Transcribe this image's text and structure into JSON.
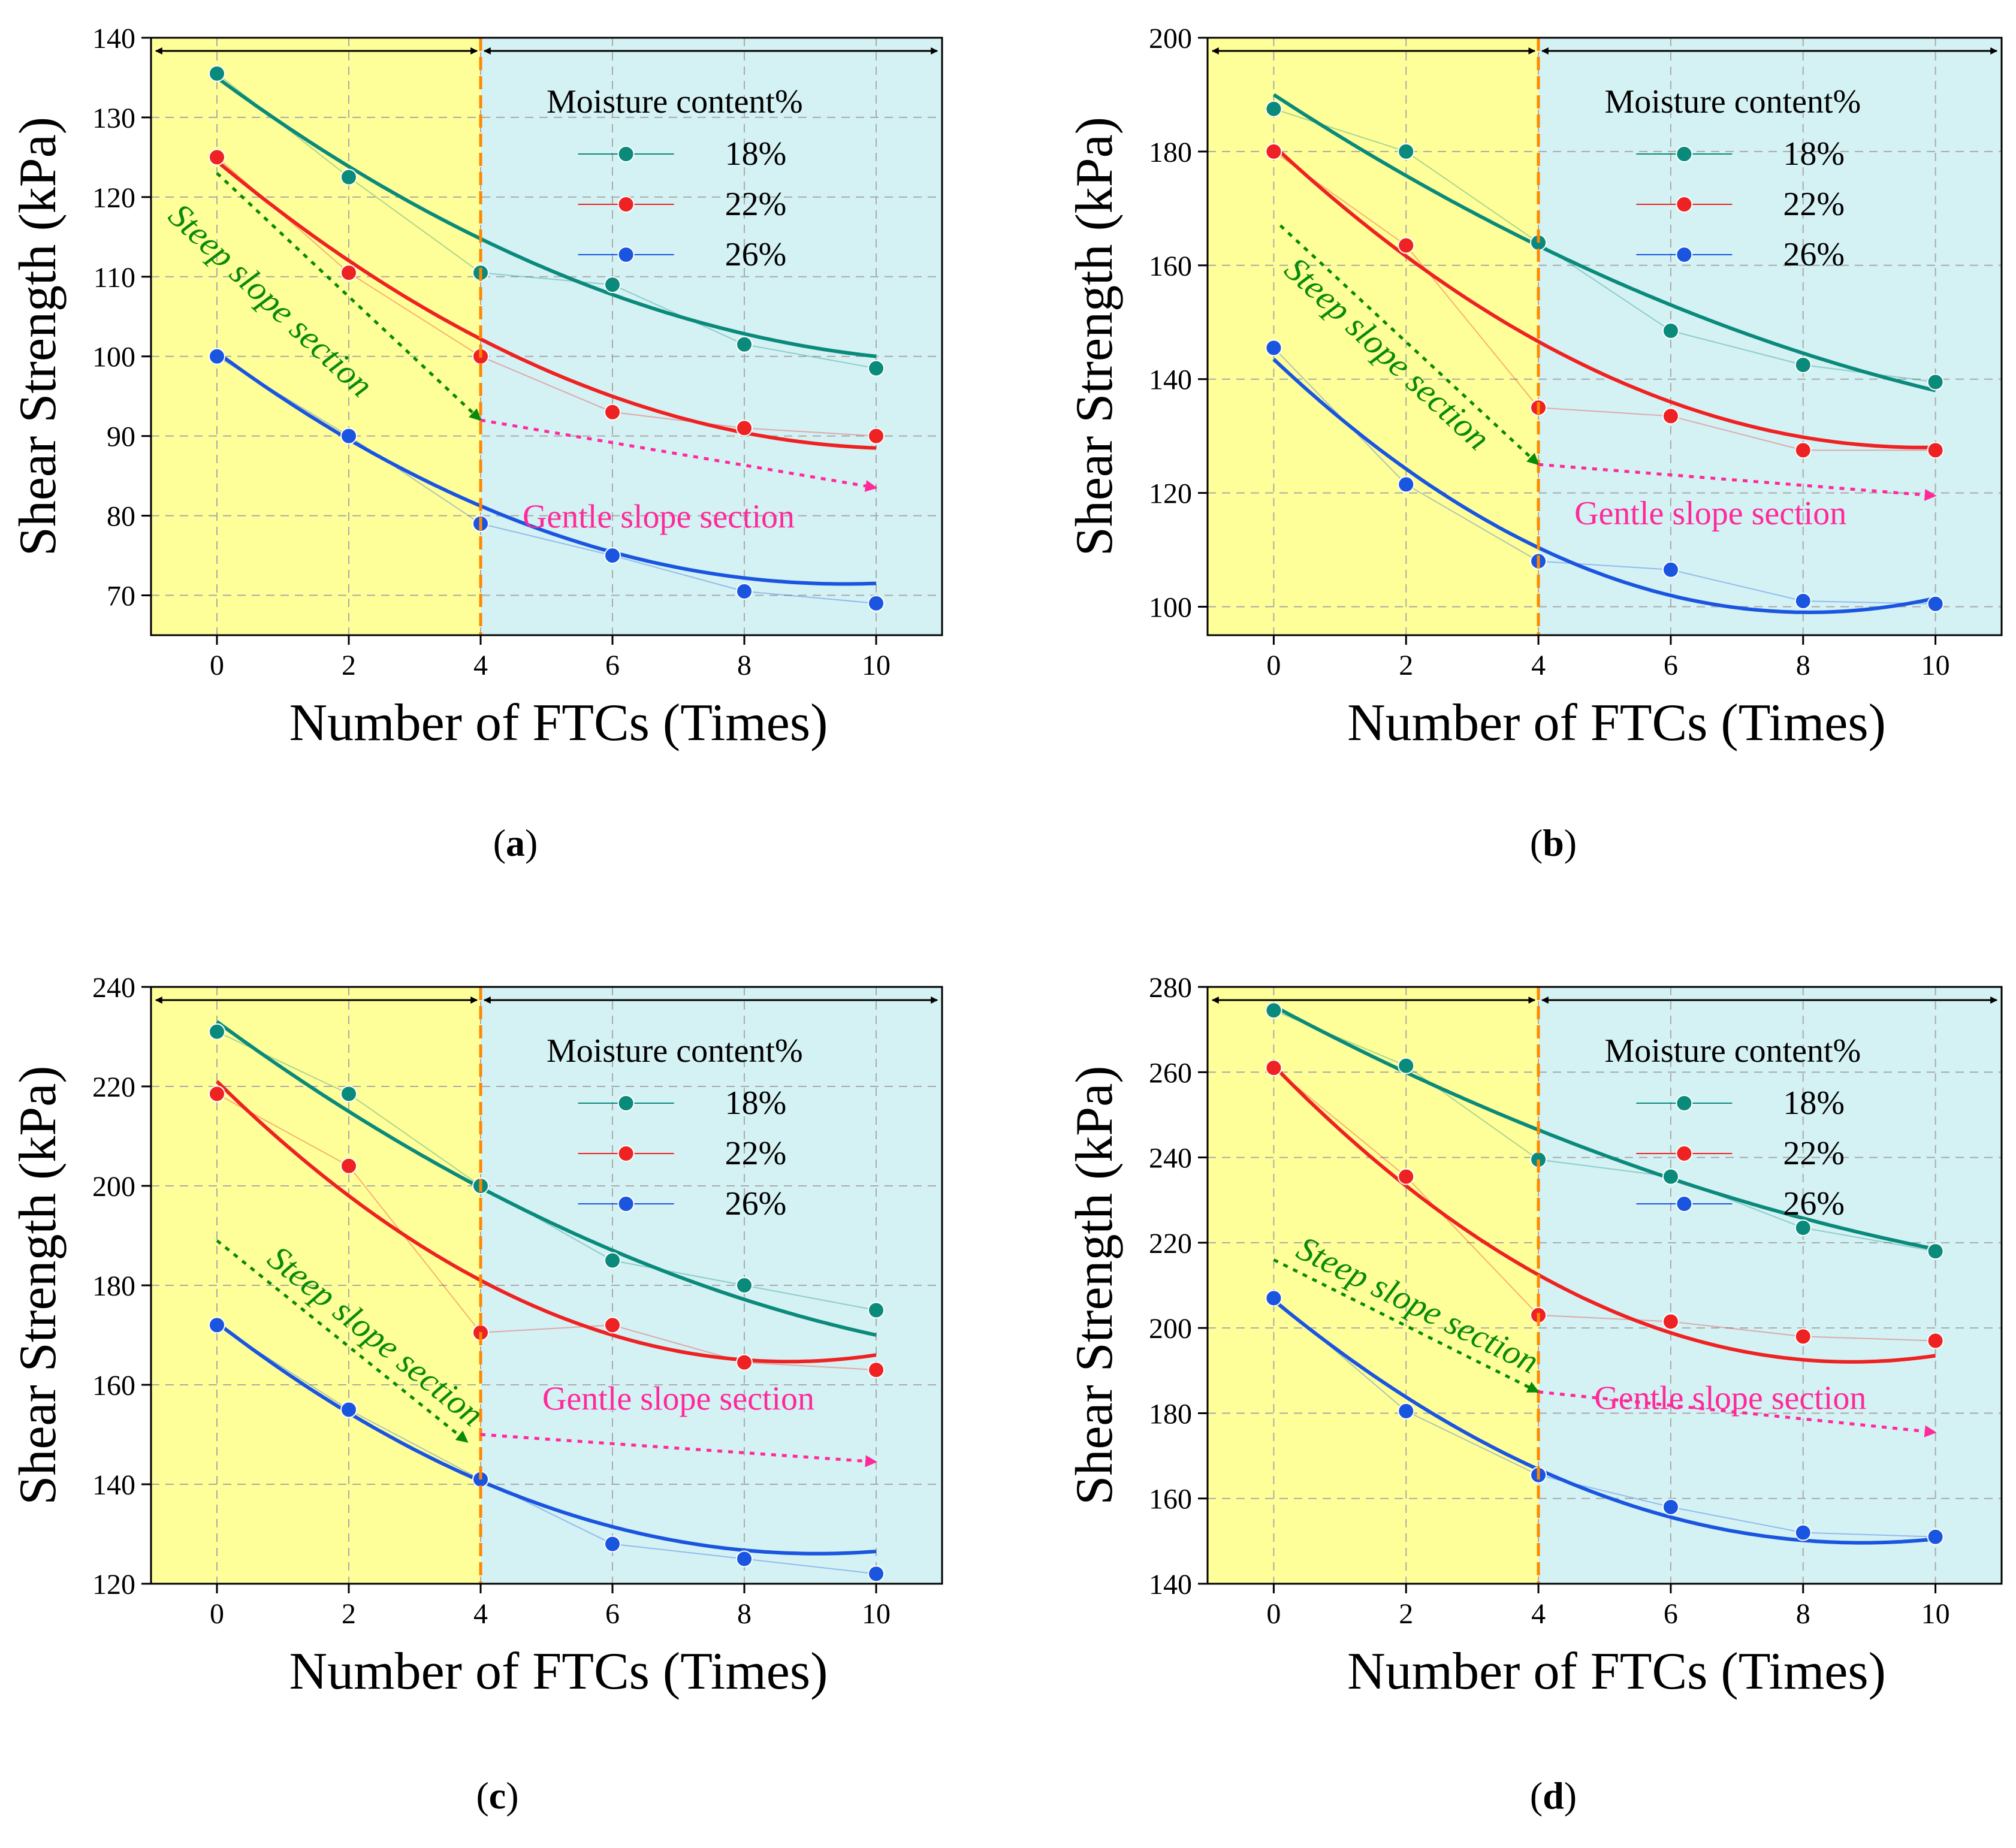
{
  "chart_data": [
    {
      "type": "line",
      "caption_letter": "a",
      "xlabel": "Number of FTCs (Times)",
      "ylabel": "Shear Strength (kPa)",
      "xlim": [
        -1,
        11
      ],
      "ylim": [
        65,
        140
      ],
      "xticks": [
        0,
        2,
        4,
        6,
        8,
        10
      ],
      "yticks": [
        70,
        80,
        90,
        100,
        110,
        120,
        130,
        140
      ],
      "grid": true,
      "divider_x": 4,
      "regions": [
        {
          "from": -1,
          "to": 4,
          "color": "#ffff99"
        },
        {
          "from": 4,
          "to": 11,
          "color": "#d4f1f4"
        }
      ],
      "legend_title": "Moisture content%",
      "legend_position": "top-right",
      "x": [
        0,
        2,
        4,
        6,
        8,
        10
      ],
      "series": [
        {
          "name": "18%",
          "color": "#0a8a7a",
          "values": [
            135.5,
            122.5,
            110.5,
            109,
            101.5,
            98.5
          ],
          "fit": [
            135,
            -6.1,
            0.26
          ]
        },
        {
          "name": "22%",
          "color": "#ee2222",
          "values": [
            125,
            110.5,
            100,
            93,
            91,
            90
          ],
          "fit": [
            124.5,
            -6.9,
            0.33
          ]
        },
        {
          "name": "26%",
          "color": "#1a55e0",
          "values": [
            100,
            90,
            79,
            75,
            70.5,
            69
          ],
          "fit": [
            100.5,
            -6.1,
            0.32
          ]
        }
      ],
      "annotations": {
        "steep_text": "Steep slope section",
        "gentle_text": "Gentle slope section",
        "steep_arrow": {
          "from": [
            0,
            123
          ],
          "to": [
            4,
            92
          ]
        },
        "gentle_arrow": {
          "from": [
            4,
            92
          ],
          "to": [
            10,
            83.5
          ]
        },
        "steep_label_at": [
          0.7,
          106
        ],
        "gentle_label_at": [
          6.7,
          78.5
        ]
      }
    },
    {
      "type": "line",
      "caption_letter": "b",
      "xlabel": "Number of FTCs (Times)",
      "ylabel": "Shear Strength (kPa)",
      "xlim": [
        -1,
        11
      ],
      "ylim": [
        95,
        200
      ],
      "xticks": [
        0,
        2,
        4,
        6,
        8,
        10
      ],
      "yticks": [
        100,
        120,
        140,
        160,
        180,
        200
      ],
      "grid": true,
      "divider_x": 4,
      "regions": [
        {
          "from": -1,
          "to": 4,
          "color": "#ffff99"
        },
        {
          "from": 4,
          "to": 11,
          "color": "#d4f1f4"
        }
      ],
      "legend_title": "Moisture content%",
      "legend_position": "top-right",
      "x": [
        0,
        2,
        4,
        6,
        8,
        10
      ],
      "series": [
        {
          "name": "18%",
          "color": "#0a8a7a",
          "values": [
            187.5,
            180,
            164,
            148.5,
            142.5,
            139.5
          ],
          "fit": [
            190,
            -7.6,
            0.24
          ]
        },
        {
          "name": "22%",
          "color": "#ee2222",
          "values": [
            180,
            163.5,
            135,
            133.5,
            127.5,
            127.5
          ],
          "fit": [
            181,
            -10.8,
            0.55
          ]
        },
        {
          "name": "26%",
          "color": "#1a55e0",
          "values": [
            145.5,
            121.5,
            108,
            106.5,
            101,
            100.5
          ],
          "fit": [
            143.5,
            -11.0,
            0.68
          ]
        }
      ],
      "annotations": {
        "steep_text": "Steep slope section",
        "gentle_text": "Gentle slope section",
        "steep_arrow": {
          "from": [
            0.1,
            167
          ],
          "to": [
            4,
            125
          ]
        },
        "gentle_arrow": {
          "from": [
            4,
            125
          ],
          "to": [
            10,
            119.5
          ]
        },
        "steep_label_at": [
          1.6,
          143
        ],
        "gentle_label_at": [
          6.6,
          114.5
        ]
      }
    },
    {
      "type": "line",
      "caption_letter": "c",
      "xlabel": "Number of FTCs (Times)",
      "ylabel": "Shear Strength (kPa)",
      "xlim": [
        -1,
        11
      ],
      "ylim": [
        120,
        240
      ],
      "xticks": [
        0,
        2,
        4,
        6,
        8,
        10
      ],
      "yticks": [
        120,
        140,
        160,
        180,
        200,
        220,
        240
      ],
      "grid": true,
      "divider_x": 4,
      "regions": [
        {
          "from": -1,
          "to": 4,
          "color": "#ffff99"
        },
        {
          "from": 4,
          "to": 11,
          "color": "#d4f1f4"
        }
      ],
      "legend_title": "Moisture content%",
      "legend_position": "top-right",
      "x": [
        0,
        2,
        4,
        6,
        8,
        10
      ],
      "series": [
        {
          "name": "18%",
          "color": "#0a8a7a",
          "values": [
            231,
            218.5,
            200,
            185,
            180,
            175
          ],
          "fit": [
            233,
            -9.7,
            0.34
          ]
        },
        {
          "name": "22%",
          "color": "#ee2222",
          "values": [
            218.5,
            204,
            170.5,
            172,
            164.5,
            163
          ],
          "fit": [
            221,
            -13.0,
            0.75
          ]
        },
        {
          "name": "26%",
          "color": "#1a55e0",
          "values": [
            172,
            155,
            141,
            128,
            125,
            122
          ],
          "fit": [
            172.5,
            -10.2,
            0.56
          ]
        }
      ],
      "annotations": {
        "steep_text": "Steep slope section",
        "gentle_text": "Gentle slope section",
        "steep_arrow": {
          "from": [
            0,
            189
          ],
          "to": [
            3.8,
            148.5
          ]
        },
        "gentle_arrow": {
          "from": [
            4,
            150
          ],
          "to": [
            10,
            144.5
          ]
        },
        "steep_label_at": [
          2.3,
          168
        ],
        "gentle_label_at": [
          7.0,
          155
        ]
      }
    },
    {
      "type": "line",
      "caption_letter": "d",
      "xlabel": "Number of FTCs (Times)",
      "ylabel": "Shear Strength (kPa)",
      "xlim": [
        -1,
        11
      ],
      "ylim": [
        140,
        280
      ],
      "xticks": [
        0,
        2,
        4,
        6,
        8,
        10
      ],
      "yticks": [
        140,
        160,
        180,
        200,
        220,
        240,
        260,
        280
      ],
      "grid": true,
      "divider_x": 4,
      "regions": [
        {
          "from": -1,
          "to": 4,
          "color": "#ffff99"
        },
        {
          "from": 4,
          "to": 11,
          "color": "#d4f1f4"
        }
      ],
      "legend_title": "Moisture content%",
      "legend_position": "top-right",
      "x": [
        0,
        2,
        4,
        6,
        8,
        10
      ],
      "series": [
        {
          "name": "18%",
          "color": "#0a8a7a",
          "values": [
            274.5,
            261.5,
            239.5,
            235.5,
            223.5,
            218
          ],
          "fit": [
            275.5,
            -8.3,
            0.26
          ]
        },
        {
          "name": "22%",
          "color": "#ee2222",
          "values": [
            261,
            235.5,
            203,
            201.5,
            198,
            197
          ],
          "fit": [
            261.5,
            -15.9,
            0.91
          ]
        },
        {
          "name": "26%",
          "color": "#1a55e0",
          "values": [
            207,
            180.5,
            165.5,
            158,
            152,
            151
          ],
          "fit": [
            206.5,
            -12.8,
            0.72
          ]
        }
      ],
      "annotations": {
        "steep_text": "Steep slope section",
        "gentle_text": "Gentle slope section",
        "steep_arrow": {
          "from": [
            0,
            216
          ],
          "to": [
            4,
            185
          ]
        },
        "gentle_arrow": {
          "from": [
            4,
            185
          ],
          "to": [
            10,
            175.5
          ]
        },
        "steep_label_at": [
          2.1,
          203
        ],
        "gentle_label_at": [
          6.9,
          181
        ]
      }
    }
  ]
}
